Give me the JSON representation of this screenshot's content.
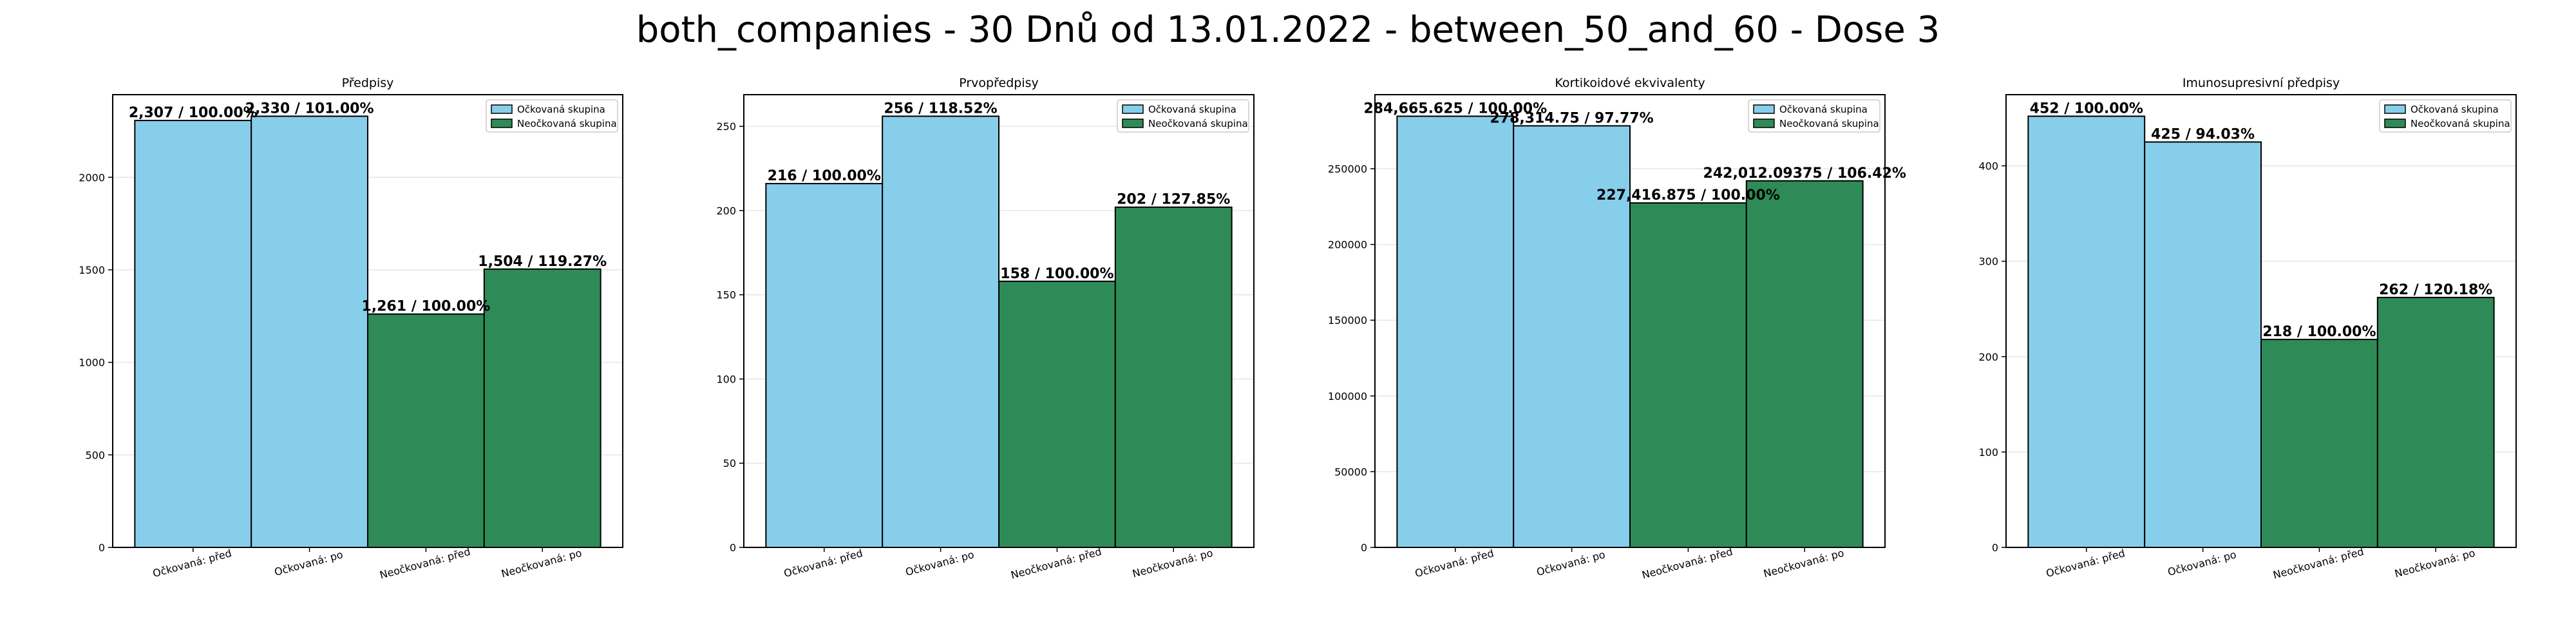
{
  "figure": {
    "suptitle": "both_companies - 30 Dnů od 13.01.2022 - between_50_and_60 - Dose 3"
  },
  "colors": {
    "vaccinated": "#87ceeb",
    "unvaccinated": "#2e8b57",
    "edge": "#000000",
    "grid": "#e6e6e6"
  },
  "legend": {
    "position": "top-right",
    "entries": [
      "Očkovaná skupina",
      "Neočkovaná skupina"
    ]
  },
  "chart_data": [
    {
      "type": "bar",
      "title": "Předpisy",
      "categories": [
        "Očkovaná: před",
        "Očkovaná: po",
        "Neočkovaná: před",
        "Neočkovaná: po"
      ],
      "values": [
        2307,
        2330,
        1261,
        1504
      ],
      "bar_labels": [
        "2,307 / 100.00%",
        "2,330 / 101.00%",
        "1,261 / 100.00%",
        "1,504 / 119.27%"
      ],
      "series_colors": [
        "vaccinated",
        "vaccinated",
        "unvaccinated",
        "unvaccinated"
      ],
      "ylim": [
        0,
        2446.5
      ],
      "yticks": [
        0,
        500,
        1000,
        1500,
        2000
      ],
      "ytick_labels": [
        "0",
        "500",
        "1000",
        "1500",
        "2000"
      ],
      "grid": true
    },
    {
      "type": "bar",
      "title": "Prvopředpisy",
      "categories": [
        "Očkovaná: před",
        "Očkovaná: po",
        "Neočkovaná: před",
        "Neočkovaná: po"
      ],
      "values": [
        216,
        256,
        158,
        202
      ],
      "bar_labels": [
        "216 / 100.00%",
        "256 / 118.52%",
        "158 / 100.00%",
        "202 / 127.85%"
      ],
      "series_colors": [
        "vaccinated",
        "vaccinated",
        "unvaccinated",
        "unvaccinated"
      ],
      "ylim": [
        0,
        268.8
      ],
      "yticks": [
        0,
        50,
        100,
        150,
        200,
        250
      ],
      "ytick_labels": [
        "0",
        "50",
        "100",
        "150",
        "200",
        "250"
      ],
      "grid": true
    },
    {
      "type": "bar",
      "title": "Kortikoidové ekvivalenty",
      "categories": [
        "Očkovaná: před",
        "Očkovaná: po",
        "Neočkovaná: před",
        "Neočkovaná: po"
      ],
      "values": [
        284665.625,
        278314.75,
        227416.875,
        242012.09375
      ],
      "bar_labels": [
        "284,665.625 / 100.00%",
        "278,314.75 / 97.77%",
        "227,416.875 / 100.00%",
        "242,012.09375 / 106.42%"
      ],
      "series_colors": [
        "vaccinated",
        "vaccinated",
        "unvaccinated",
        "unvaccinated"
      ],
      "ylim": [
        0,
        298899
      ],
      "yticks": [
        0,
        50000,
        100000,
        150000,
        200000,
        250000
      ],
      "ytick_labels": [
        "0",
        "50000",
        "100000",
        "150000",
        "200000",
        "250000"
      ],
      "grid": true
    },
    {
      "type": "bar",
      "title": "Imunosupresivní předpisy",
      "categories": [
        "Očkovaná: před",
        "Očkovaná: po",
        "Neočkovaná: před",
        "Neočkovaná: po"
      ],
      "values": [
        452,
        425,
        218,
        262
      ],
      "bar_labels": [
        "452 / 100.00%",
        "425 / 94.03%",
        "218 / 100.00%",
        "262 / 120.18%"
      ],
      "series_colors": [
        "vaccinated",
        "vaccinated",
        "unvaccinated",
        "unvaccinated"
      ],
      "ylim": [
        0,
        474.6
      ],
      "yticks": [
        0,
        100,
        200,
        300,
        400
      ],
      "ytick_labels": [
        "0",
        "100",
        "200",
        "300",
        "400"
      ],
      "grid": true
    }
  ]
}
